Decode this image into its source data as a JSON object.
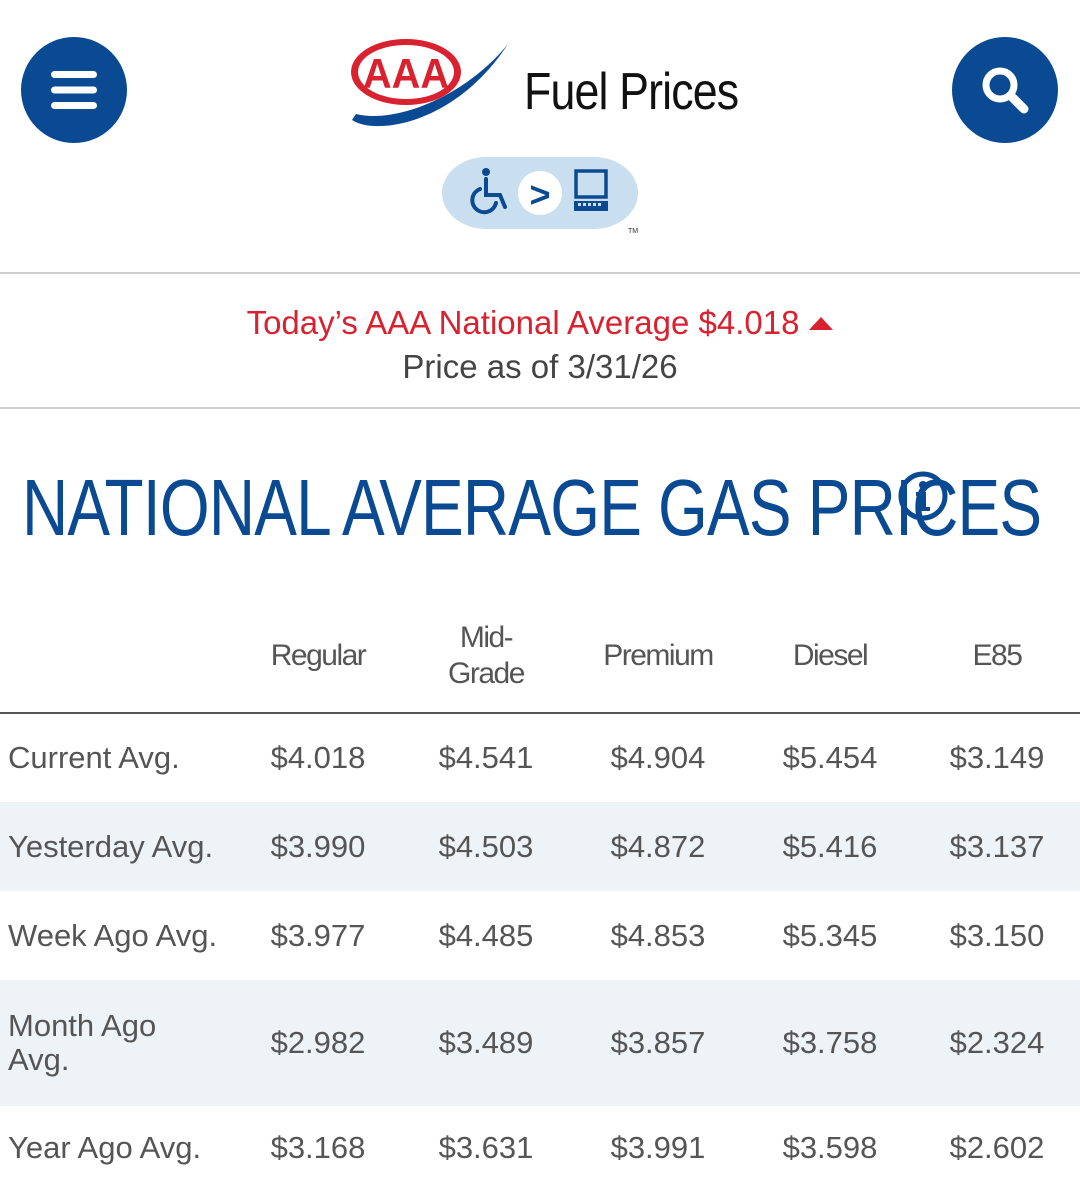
{
  "header": {
    "title": "Fuel Prices",
    "logo_text": "AAA",
    "accessibility_badge_symbol": ">",
    "trademark": "TM",
    "brand_color": "#0a4a93",
    "logo_red": "#d8222f"
  },
  "banner": {
    "national_average_label": "Today’s AAA National Average $4.018",
    "trend": "up",
    "price_as_of": "Price as of 3/31/26",
    "highlight_color": "#d8222f"
  },
  "section": {
    "title": "NATIONAL AVERAGE GAS PRICES",
    "info_icon": "info-icon"
  },
  "table": {
    "columns": [
      "",
      "Regular",
      "Mid-\nGrade",
      "Premium",
      "Diesel",
      "E85"
    ],
    "rows": [
      {
        "label": "Current Avg.",
        "values": [
          "$4.018",
          "$4.541",
          "$4.904",
          "$5.454",
          "$3.149"
        ]
      },
      {
        "label": "Yesterday Avg.",
        "values": [
          "$3.990",
          "$4.503",
          "$4.872",
          "$5.416",
          "$3.137"
        ]
      },
      {
        "label": "Week Ago Avg.",
        "values": [
          "$3.977",
          "$4.485",
          "$4.853",
          "$5.345",
          "$3.150"
        ]
      },
      {
        "label": "Month Ago\nAvg.",
        "values": [
          "$2.982",
          "$3.489",
          "$3.857",
          "$3.758",
          "$2.324"
        ]
      },
      {
        "label": "Year Ago Avg.",
        "values": [
          "$3.168",
          "$3.631",
          "$3.991",
          "$3.598",
          "$2.602"
        ]
      }
    ]
  },
  "icons": {
    "menu": "hamburger-menu-icon",
    "search": "search-icon",
    "accessibility": "wheelchair-icon",
    "computer": "computer-icon"
  }
}
